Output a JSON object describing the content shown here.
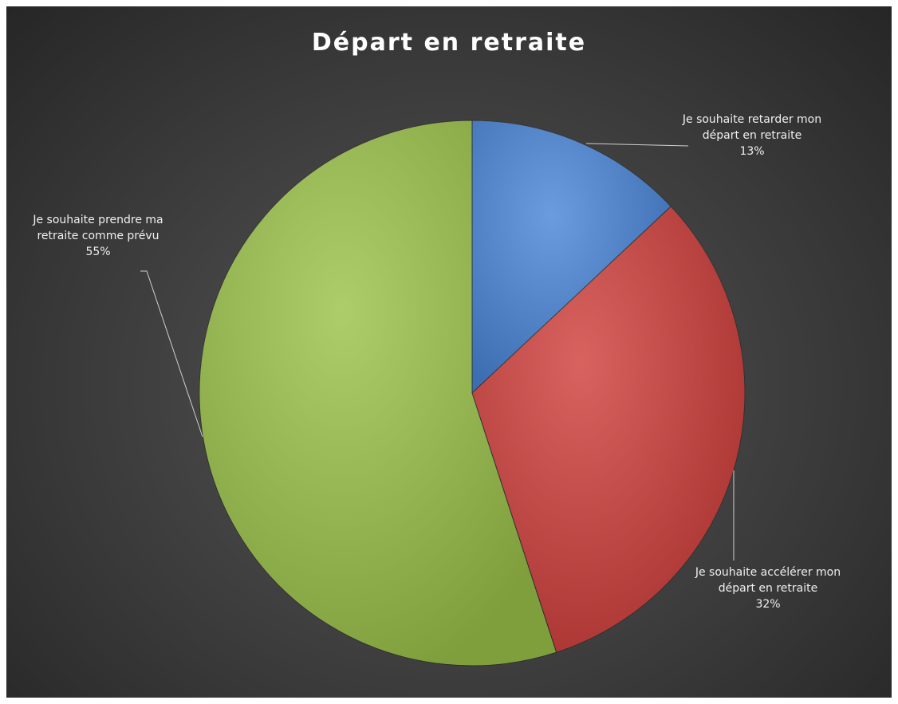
{
  "chart_data": {
    "type": "pie",
    "title": "Départ en retraite",
    "categories": [
      "Je souhaite retarder mon départ en retraite",
      "Je souhaite accélérer mon départ en retraite",
      "Je souhaite prendre ma retraite comme prévu"
    ],
    "values": [
      13,
      32,
      55
    ],
    "value_labels": [
      "13%",
      "32%",
      "55%"
    ],
    "colors": [
      "#4a86d8",
      "#d0403c",
      "#9bc24a"
    ]
  }
}
